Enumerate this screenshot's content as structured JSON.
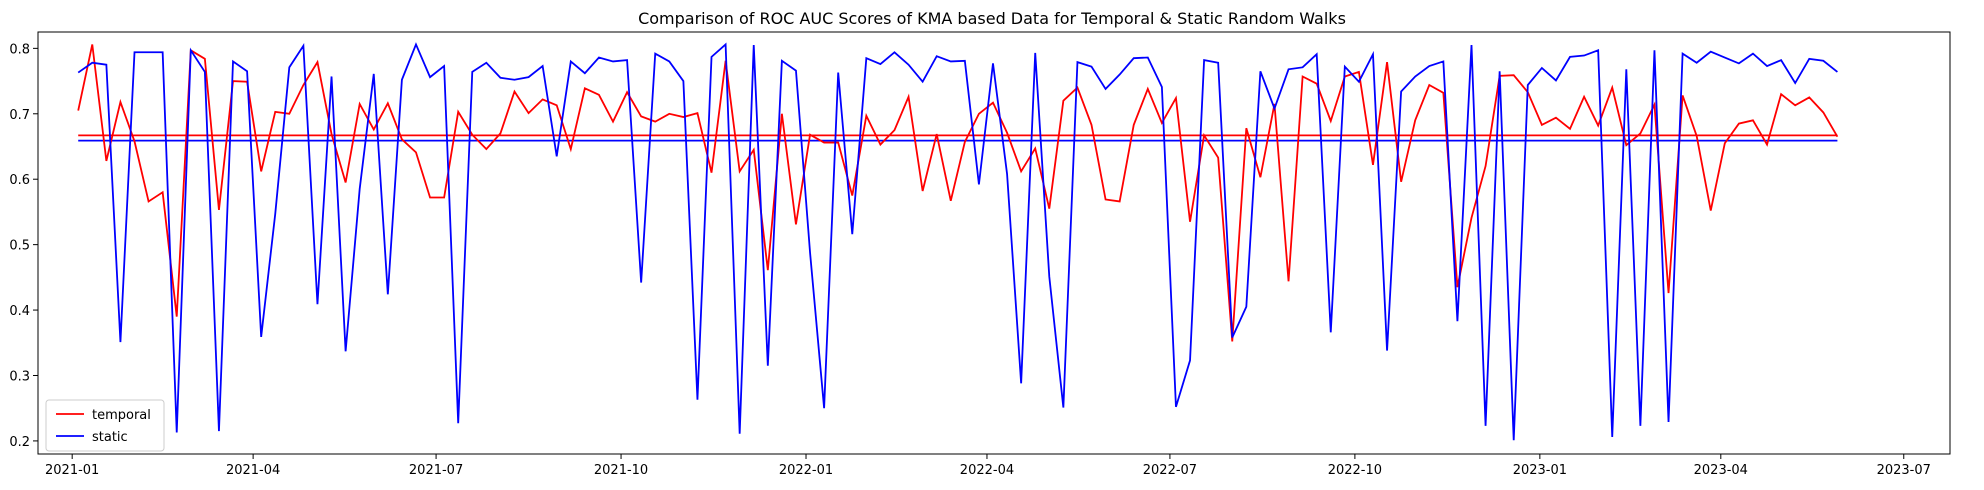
{
  "chart_data": {
    "type": "line",
    "title": "Comparison of ROC AUC Scores of KMA based Data for Temporal & Static Random Walks",
    "xlabel": "",
    "ylabel": "",
    "x_start": "2021-01-04",
    "x_step_days": 7,
    "xlim": [
      "2020-12-15",
      "2023-07-24"
    ],
    "ylim": [
      0.18,
      0.825
    ],
    "x_tick_labels": [
      "2021-01",
      "2021-04",
      "2021-07",
      "2021-10",
      "2022-01",
      "2022-04",
      "2022-07",
      "2022-10",
      "2023-01",
      "2023-04",
      "2023-07"
    ],
    "y_tick_labels": [
      "0.2",
      "0.3",
      "0.4",
      "0.5",
      "0.6",
      "0.7",
      "0.8"
    ],
    "legend_position": "lower-left",
    "grid": false,
    "series": [
      {
        "name": "temporal",
        "color": "#ff0000",
        "mean": 0.667,
        "values": [
          0.705,
          0.806,
          0.628,
          0.718,
          0.658,
          0.566,
          0.58,
          0.39,
          0.797,
          0.784,
          0.553,
          0.75,
          0.749,
          0.612,
          0.703,
          0.7,
          0.744,
          0.779,
          0.669,
          0.595,
          0.715,
          0.676,
          0.716,
          0.661,
          0.641,
          0.572,
          0.572,
          0.703,
          0.668,
          0.646,
          0.67,
          0.734,
          0.701,
          0.722,
          0.713,
          0.646,
          0.739,
          0.729,
          0.688,
          0.733,
          0.696,
          0.688,
          0.7,
          0.695,
          0.701,
          0.61,
          0.781,
          0.612,
          0.645,
          0.461,
          0.7,
          0.531,
          0.668,
          0.656,
          0.656,
          0.575,
          0.697,
          0.653,
          0.675,
          0.726,
          0.582,
          0.669,
          0.567,
          0.657,
          0.7,
          0.717,
          0.671,
          0.612,
          0.647,
          0.555,
          0.72,
          0.74,
          0.683,
          0.569,
          0.566,
          0.683,
          0.738,
          0.686,
          0.724,
          0.535,
          0.667,
          0.633,
          0.352,
          0.678,
          0.603,
          0.715,
          0.444,
          0.757,
          0.746,
          0.689,
          0.757,
          0.764,
          0.622,
          0.779,
          0.596,
          0.69,
          0.744,
          0.732,
          0.435,
          0.541,
          0.62,
          0.758,
          0.759,
          0.733,
          0.683,
          0.694,
          0.677,
          0.726,
          0.682,
          0.74,
          0.652,
          0.67,
          0.714,
          0.426,
          0.728,
          0.666,
          0.552,
          0.655,
          0.685,
          0.69,
          0.653,
          0.73,
          0.713,
          0.725,
          0.702,
          0.665
        ]
      },
      {
        "name": "static",
        "color": "#0000ff",
        "mean": 0.659,
        "values": [
          0.763,
          0.778,
          0.775,
          0.351,
          0.794,
          0.794,
          0.794,
          0.213,
          0.797,
          0.764,
          0.215,
          0.78,
          0.765,
          0.359,
          0.547,
          0.771,
          0.804,
          0.409,
          0.757,
          0.337,
          0.585,
          0.761,
          0.424,
          0.752,
          0.806,
          0.756,
          0.773,
          0.227,
          0.764,
          0.778,
          0.755,
          0.752,
          0.756,
          0.773,
          0.635,
          0.78,
          0.762,
          0.786,
          0.78,
          0.782,
          0.442,
          0.792,
          0.78,
          0.75,
          0.263,
          0.787,
          0.806,
          0.211,
          0.805,
          0.315,
          0.781,
          0.766,
          0.488,
          0.25,
          0.763,
          0.516,
          0.785,
          0.776,
          0.794,
          0.775,
          0.749,
          0.788,
          0.78,
          0.781,
          0.592,
          0.777,
          0.608,
          0.288,
          0.793,
          0.451,
          0.251,
          0.779,
          0.772,
          0.738,
          0.76,
          0.785,
          0.786,
          0.741,
          0.252,
          0.323,
          0.782,
          0.778,
          0.358,
          0.405,
          0.765,
          0.708,
          0.768,
          0.771,
          0.791,
          0.366,
          0.772,
          0.749,
          0.791,
          0.338,
          0.734,
          0.757,
          0.773,
          0.78,
          0.383,
          0.805,
          0.223,
          0.765,
          0.201,
          0.744,
          0.77,
          0.751,
          0.787,
          0.789,
          0.797,
          0.206,
          0.768,
          0.223,
          0.797,
          0.229,
          0.792,
          0.778,
          0.795,
          0.786,
          0.777,
          0.792,
          0.773,
          0.782,
          0.747,
          0.784,
          0.781,
          0.764
        ]
      }
    ]
  }
}
